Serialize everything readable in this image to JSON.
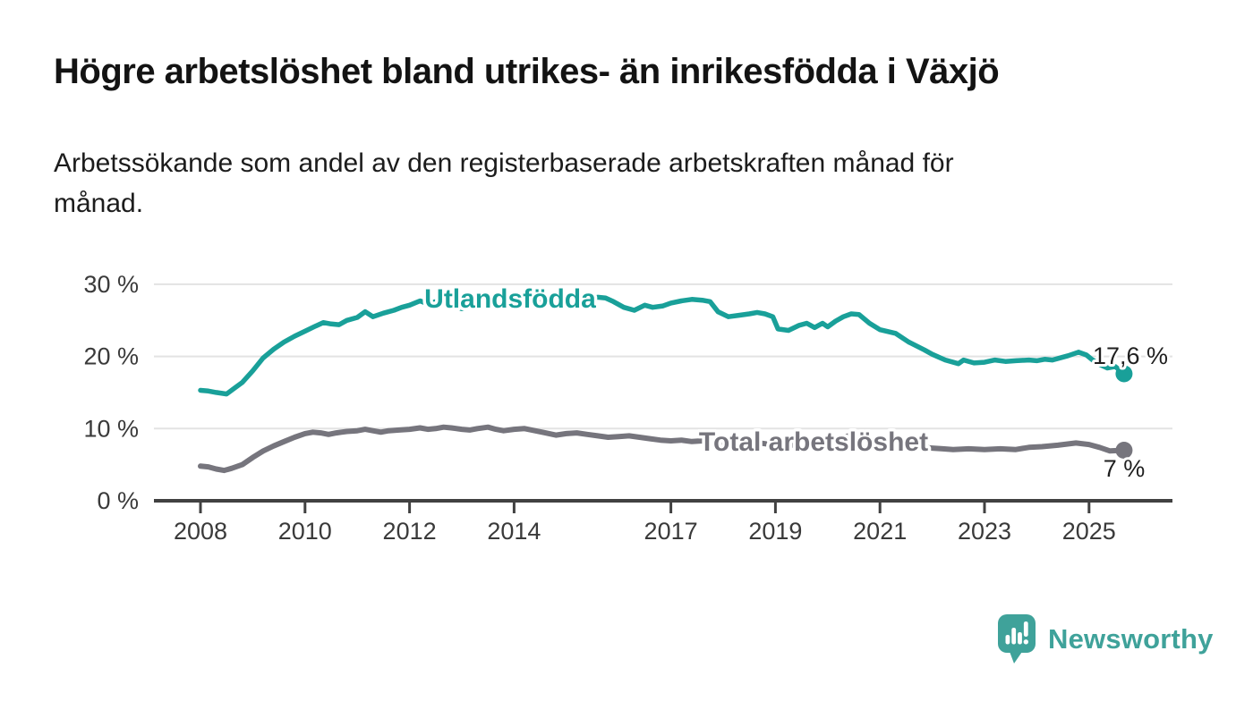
{
  "header": {
    "title": "Högre arbetslöshet bland utrikes- än inrikesfödda i Växjö",
    "subtitle": "Arbetssökande som andel av den registerbaserade arbetskraften månad för månad."
  },
  "footer": {
    "brand": "Newsworthy",
    "brand_color": "#3FA29A",
    "logo_icon": "newsworthy-speech-bubble-bar-chart-icon"
  },
  "chart_data": {
    "type": "line",
    "title": "Högre arbetslöshet bland utrikes- än inrikesfödda i Växjö",
    "subtitle": "Arbetssökande som andel av den registerbaserade arbetskraften månad för månad.",
    "unit": "%",
    "grid": true,
    "legend_position": "inline-labels-on-lines",
    "x_axis": {
      "ticks": [
        "2008",
        "2010",
        "2012",
        "2014",
        "2017",
        "2019",
        "2021",
        "2023",
        "2025"
      ],
      "tick_years": [
        2008,
        2010,
        2012,
        2014,
        2017,
        2019,
        2021,
        2023,
        2025
      ]
    },
    "y_axis": {
      "ticks": [
        0,
        10,
        20,
        30
      ],
      "tick_suffix": " %",
      "range": [
        0,
        33
      ]
    },
    "xlim": [
      2007.1,
      2026.6
    ],
    "series": [
      {
        "name": "Utlandsfödda",
        "color": "#19A099",
        "line_width": 5.5,
        "end_label": "17,6 %",
        "end_value": 17.6,
        "points": [
          [
            2008.0,
            15.3
          ],
          [
            2008.15,
            15.2
          ],
          [
            2008.3,
            15.0
          ],
          [
            2008.5,
            14.8
          ],
          [
            2008.65,
            15.6
          ],
          [
            2008.8,
            16.4
          ],
          [
            2009.0,
            18.0
          ],
          [
            2009.2,
            19.8
          ],
          [
            2009.4,
            21.0
          ],
          [
            2009.6,
            22.0
          ],
          [
            2009.8,
            22.8
          ],
          [
            2010.0,
            23.5
          ],
          [
            2010.2,
            24.2
          ],
          [
            2010.35,
            24.7
          ],
          [
            2010.5,
            24.5
          ],
          [
            2010.65,
            24.4
          ],
          [
            2010.8,
            25.0
          ],
          [
            2011.0,
            25.4
          ],
          [
            2011.15,
            26.2
          ],
          [
            2011.3,
            25.5
          ],
          [
            2011.5,
            26.0
          ],
          [
            2011.7,
            26.4
          ],
          [
            2011.85,
            26.8
          ],
          [
            2012.0,
            27.1
          ],
          [
            2012.2,
            27.7
          ],
          [
            2012.35,
            27.3
          ],
          [
            2012.5,
            27.6
          ],
          [
            2012.7,
            27.4
          ],
          [
            2012.85,
            27.0
          ],
          [
            2013.0,
            26.6
          ],
          [
            2013.2,
            26.9
          ],
          [
            2013.4,
            27.3
          ],
          [
            2013.6,
            27.0
          ],
          [
            2013.8,
            26.8
          ],
          [
            2014.0,
            27.2
          ],
          [
            2014.2,
            27.7
          ],
          [
            2014.35,
            27.3
          ],
          [
            2014.55,
            27.6
          ],
          [
            2014.75,
            27.8
          ],
          [
            2014.9,
            27.5
          ],
          [
            2015.1,
            27.9
          ],
          [
            2015.3,
            28.3
          ],
          [
            2015.45,
            28.0
          ],
          [
            2015.6,
            28.2
          ],
          [
            2015.75,
            28.1
          ],
          [
            2015.9,
            27.6
          ],
          [
            2016.1,
            26.8
          ],
          [
            2016.3,
            26.4
          ],
          [
            2016.5,
            27.1
          ],
          [
            2016.65,
            26.8
          ],
          [
            2016.85,
            27.0
          ],
          [
            2017.0,
            27.4
          ],
          [
            2017.2,
            27.7
          ],
          [
            2017.4,
            27.9
          ],
          [
            2017.6,
            27.8
          ],
          [
            2017.75,
            27.6
          ],
          [
            2017.9,
            26.2
          ],
          [
            2018.1,
            25.5
          ],
          [
            2018.3,
            25.7
          ],
          [
            2018.5,
            25.9
          ],
          [
            2018.65,
            26.1
          ],
          [
            2018.8,
            25.9
          ],
          [
            2018.95,
            25.5
          ],
          [
            2019.05,
            23.8
          ],
          [
            2019.25,
            23.6
          ],
          [
            2019.45,
            24.3
          ],
          [
            2019.6,
            24.6
          ],
          [
            2019.75,
            24.0
          ],
          [
            2019.9,
            24.6
          ],
          [
            2020.0,
            24.1
          ],
          [
            2020.15,
            24.9
          ],
          [
            2020.3,
            25.5
          ],
          [
            2020.45,
            25.9
          ],
          [
            2020.6,
            25.8
          ],
          [
            2020.8,
            24.6
          ],
          [
            2021.0,
            23.7
          ],
          [
            2021.3,
            23.2
          ],
          [
            2021.55,
            22.0
          ],
          [
            2021.85,
            20.9
          ],
          [
            2022.0,
            20.3
          ],
          [
            2022.25,
            19.5
          ],
          [
            2022.5,
            19.0
          ],
          [
            2022.6,
            19.5
          ],
          [
            2022.8,
            19.1
          ],
          [
            2023.0,
            19.2
          ],
          [
            2023.2,
            19.5
          ],
          [
            2023.4,
            19.3
          ],
          [
            2023.6,
            19.4
          ],
          [
            2023.85,
            19.5
          ],
          [
            2024.0,
            19.4
          ],
          [
            2024.15,
            19.6
          ],
          [
            2024.3,
            19.5
          ],
          [
            2024.45,
            19.8
          ],
          [
            2024.6,
            20.1
          ],
          [
            2024.8,
            20.6
          ],
          [
            2024.95,
            20.2
          ],
          [
            2025.05,
            19.6
          ],
          [
            2025.2,
            18.9
          ],
          [
            2025.35,
            18.4
          ],
          [
            2025.5,
            18.6
          ],
          [
            2025.67,
            17.6
          ]
        ]
      },
      {
        "name": "Total arbetslöshet",
        "color": "#76757D",
        "line_width": 6,
        "end_label": "7 %",
        "end_value": 7.0,
        "points": [
          [
            2008.0,
            4.8
          ],
          [
            2008.15,
            4.7
          ],
          [
            2008.3,
            4.4
          ],
          [
            2008.45,
            4.2
          ],
          [
            2008.6,
            4.5
          ],
          [
            2008.8,
            5.0
          ],
          [
            2009.0,
            6.0
          ],
          [
            2009.2,
            6.9
          ],
          [
            2009.4,
            7.6
          ],
          [
            2009.6,
            8.2
          ],
          [
            2009.8,
            8.8
          ],
          [
            2010.0,
            9.3
          ],
          [
            2010.15,
            9.5
          ],
          [
            2010.3,
            9.4
          ],
          [
            2010.45,
            9.2
          ],
          [
            2010.6,
            9.4
          ],
          [
            2010.8,
            9.6
          ],
          [
            2011.0,
            9.7
          ],
          [
            2011.15,
            9.9
          ],
          [
            2011.3,
            9.7
          ],
          [
            2011.45,
            9.5
          ],
          [
            2011.6,
            9.7
          ],
          [
            2011.8,
            9.8
          ],
          [
            2012.0,
            9.9
          ],
          [
            2012.2,
            10.1
          ],
          [
            2012.35,
            9.9
          ],
          [
            2012.5,
            10.0
          ],
          [
            2012.65,
            10.2
          ],
          [
            2012.8,
            10.1
          ],
          [
            2013.0,
            9.9
          ],
          [
            2013.15,
            9.8
          ],
          [
            2013.3,
            10.0
          ],
          [
            2013.5,
            10.2
          ],
          [
            2013.65,
            9.9
          ],
          [
            2013.8,
            9.7
          ],
          [
            2014.0,
            9.9
          ],
          [
            2014.2,
            10.0
          ],
          [
            2014.4,
            9.7
          ],
          [
            2014.6,
            9.4
          ],
          [
            2014.8,
            9.1
          ],
          [
            2015.0,
            9.3
          ],
          [
            2015.2,
            9.4
          ],
          [
            2015.4,
            9.2
          ],
          [
            2015.6,
            9.0
          ],
          [
            2015.8,
            8.8
          ],
          [
            2016.0,
            8.9
          ],
          [
            2016.2,
            9.0
          ],
          [
            2016.4,
            8.8
          ],
          [
            2016.6,
            8.6
          ],
          [
            2016.8,
            8.4
          ],
          [
            2017.0,
            8.3
          ],
          [
            2017.2,
            8.4
          ],
          [
            2017.4,
            8.2
          ],
          [
            2017.6,
            8.3
          ],
          [
            2017.8,
            8.2
          ],
          [
            2018.0,
            8.1
          ],
          [
            2018.2,
            8.0
          ],
          [
            2018.4,
            8.2
          ],
          [
            2018.6,
            8.1
          ],
          [
            2018.8,
            7.9
          ],
          [
            2019.0,
            7.7
          ],
          [
            2019.2,
            7.6
          ],
          [
            2019.4,
            7.8
          ],
          [
            2019.6,
            7.7
          ],
          [
            2019.8,
            7.9
          ],
          [
            2020.0,
            8.1
          ],
          [
            2020.2,
            8.6
          ],
          [
            2020.4,
            9.0
          ],
          [
            2020.6,
            8.8
          ],
          [
            2020.8,
            8.5
          ],
          [
            2021.0,
            8.2
          ],
          [
            2021.2,
            8.0
          ],
          [
            2021.4,
            7.8
          ],
          [
            2021.6,
            7.6
          ],
          [
            2021.8,
            7.4
          ],
          [
            2022.0,
            7.3
          ],
          [
            2022.2,
            7.2
          ],
          [
            2022.4,
            7.1
          ],
          [
            2022.7,
            7.2
          ],
          [
            2023.0,
            7.1
          ],
          [
            2023.3,
            7.2
          ],
          [
            2023.6,
            7.1
          ],
          [
            2023.85,
            7.4
          ],
          [
            2024.1,
            7.5
          ],
          [
            2024.4,
            7.7
          ],
          [
            2024.75,
            8.0
          ],
          [
            2025.0,
            7.8
          ],
          [
            2025.2,
            7.4
          ],
          [
            2025.4,
            6.9
          ],
          [
            2025.67,
            7.0
          ]
        ]
      }
    ]
  }
}
